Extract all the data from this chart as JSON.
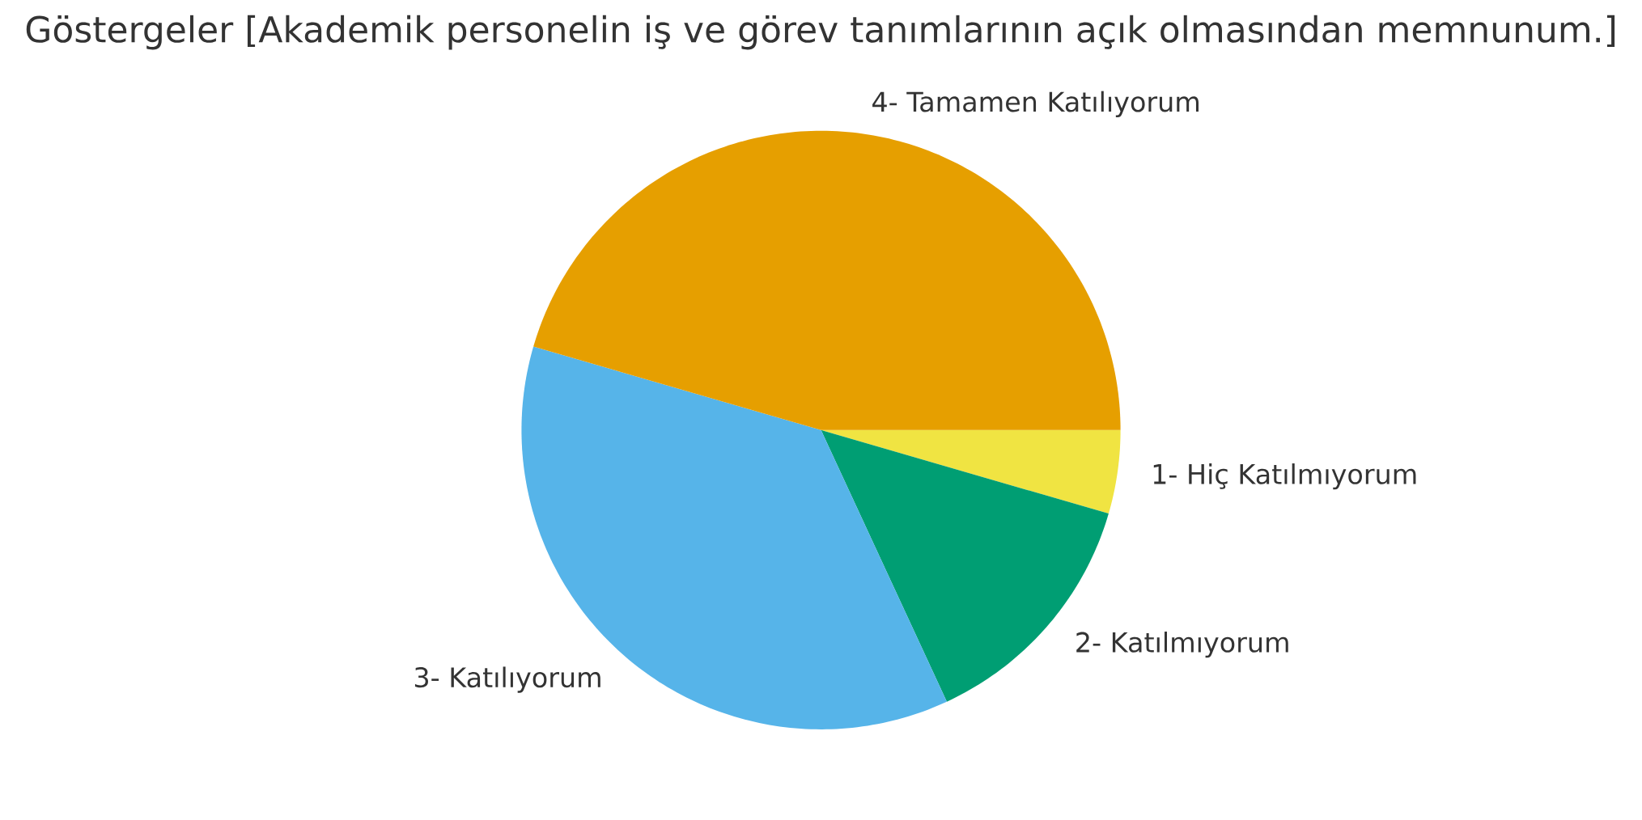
{
  "chart_data": {
    "type": "pie",
    "title": "Göstergeler [Akademik personelin iş ve görev tanımlarının açık olmasından memnunum.]",
    "categories": [
      "1- Hiç Katılmıyorum",
      "2- Katılmıyorum",
      "3- Katılıyorum",
      "4- Tamamen Katılıyorum"
    ],
    "values": [
      4.5,
      13.6,
      36.4,
      45.5
    ],
    "colors": [
      "#f0e442",
      "#009e73",
      "#56b4e9",
      "#e69f00"
    ]
  }
}
